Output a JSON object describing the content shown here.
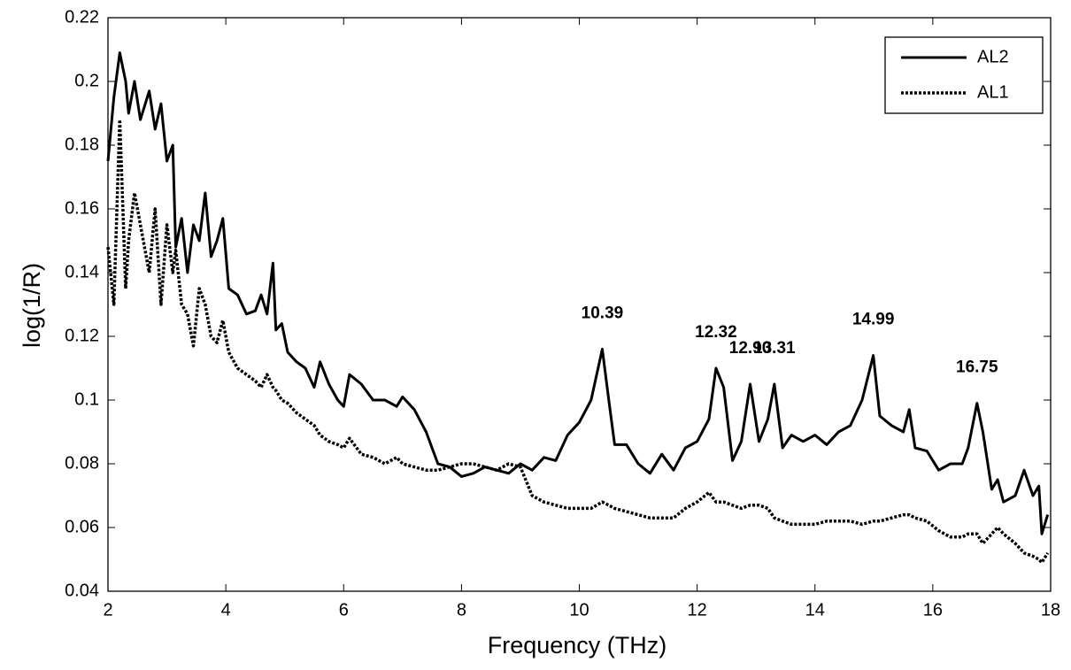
{
  "chart_data": {
    "type": "line",
    "xlabel": "Frequency (THz)",
    "ylabel": "log(1/R)",
    "x": [
      2.0,
      2.1,
      2.2,
      2.3,
      2.35,
      2.45,
      2.55,
      2.7,
      2.8,
      2.9,
      3.0,
      3.1,
      3.15,
      3.25,
      3.35,
      3.45,
      3.55,
      3.65,
      3.75,
      3.85,
      3.95,
      4.05,
      4.2,
      4.35,
      4.5,
      4.6,
      4.7,
      4.8,
      4.85,
      4.95,
      5.05,
      5.2,
      5.35,
      5.5,
      5.6,
      5.75,
      5.9,
      6.0,
      6.1,
      6.3,
      6.5,
      6.7,
      6.9,
      7.0,
      7.2,
      7.4,
      7.6,
      7.8,
      8.0,
      8.2,
      8.4,
      8.6,
      8.8,
      9.0,
      9.2,
      9.4,
      9.6,
      9.8,
      10.0,
      10.2,
      10.39,
      10.5,
      10.6,
      10.8,
      11.0,
      11.2,
      11.4,
      11.6,
      11.8,
      12.0,
      12.2,
      12.32,
      12.45,
      12.6,
      12.75,
      12.9,
      13.05,
      13.2,
      13.31,
      13.45,
      13.6,
      13.8,
      14.0,
      14.2,
      14.4,
      14.6,
      14.8,
      14.99,
      15.1,
      15.3,
      15.5,
      15.6,
      15.7,
      15.9,
      16.1,
      16.3,
      16.5,
      16.6,
      16.75,
      16.85,
      17.0,
      17.1,
      17.2,
      17.4,
      17.55,
      17.7,
      17.8,
      17.85,
      17.95
    ],
    "series": [
      {
        "name": "AL2",
        "color": "#000000",
        "linestyle": "solid",
        "values": [
          0.175,
          0.195,
          0.209,
          0.2,
          0.19,
          0.2,
          0.188,
          0.197,
          0.185,
          0.193,
          0.175,
          0.18,
          0.148,
          0.157,
          0.14,
          0.155,
          0.15,
          0.165,
          0.145,
          0.15,
          0.157,
          0.135,
          0.133,
          0.127,
          0.128,
          0.133,
          0.127,
          0.143,
          0.122,
          0.124,
          0.115,
          0.112,
          0.11,
          0.104,
          0.112,
          0.105,
          0.1,
          0.098,
          0.108,
          0.105,
          0.1,
          0.1,
          0.098,
          0.101,
          0.097,
          0.09,
          0.08,
          0.079,
          0.076,
          0.077,
          0.079,
          0.078,
          0.077,
          0.08,
          0.078,
          0.082,
          0.081,
          0.089,
          0.093,
          0.1,
          0.116,
          0.1,
          0.086,
          0.086,
          0.08,
          0.077,
          0.083,
          0.078,
          0.085,
          0.087,
          0.094,
          0.11,
          0.104,
          0.081,
          0.087,
          0.105,
          0.087,
          0.094,
          0.105,
          0.085,
          0.089,
          0.087,
          0.089,
          0.086,
          0.09,
          0.092,
          0.1,
          0.114,
          0.095,
          0.092,
          0.09,
          0.097,
          0.085,
          0.084,
          0.078,
          0.08,
          0.08,
          0.085,
          0.099,
          0.09,
          0.072,
          0.075,
          0.068,
          0.07,
          0.078,
          0.07,
          0.073,
          0.058,
          0.064
        ]
      },
      {
        "name": "AL1",
        "color": "#000000",
        "linestyle": "dotted",
        "values": [
          0.148,
          0.13,
          0.188,
          0.135,
          0.15,
          0.165,
          0.155,
          0.14,
          0.16,
          0.13,
          0.155,
          0.14,
          0.147,
          0.13,
          0.127,
          0.117,
          0.135,
          0.13,
          0.12,
          0.118,
          0.125,
          0.115,
          0.11,
          0.108,
          0.106,
          0.104,
          0.108,
          0.104,
          0.103,
          0.1,
          0.099,
          0.096,
          0.094,
          0.092,
          0.089,
          0.087,
          0.086,
          0.085,
          0.088,
          0.083,
          0.082,
          0.08,
          0.082,
          0.08,
          0.079,
          0.078,
          0.078,
          0.079,
          0.08,
          0.08,
          0.079,
          0.078,
          0.08,
          0.079,
          0.07,
          0.068,
          0.067,
          0.066,
          0.066,
          0.066,
          0.068,
          0.067,
          0.066,
          0.065,
          0.064,
          0.063,
          0.063,
          0.063,
          0.066,
          0.068,
          0.071,
          0.068,
          0.068,
          0.067,
          0.066,
          0.067,
          0.067,
          0.066,
          0.063,
          0.062,
          0.061,
          0.061,
          0.061,
          0.062,
          0.062,
          0.062,
          0.061,
          0.062,
          0.062,
          0.063,
          0.064,
          0.064,
          0.063,
          0.062,
          0.059,
          0.057,
          0.057,
          0.058,
          0.058,
          0.055,
          0.058,
          0.06,
          0.058,
          0.055,
          0.052,
          0.051,
          0.05,
          0.049,
          0.052
        ]
      }
    ],
    "annotations": [
      {
        "label": "10.39",
        "x": 10.39,
        "y": 0.116
      },
      {
        "label": "12.32",
        "x": 12.32,
        "y": 0.11
      },
      {
        "label": "12.90",
        "x": 12.9,
        "y": 0.105
      },
      {
        "label": "13.31",
        "x": 13.31,
        "y": 0.105
      },
      {
        "label": "14.99",
        "x": 14.99,
        "y": 0.114
      },
      {
        "label": "16.75",
        "x": 16.75,
        "y": 0.099
      }
    ],
    "xlim": [
      2,
      18
    ],
    "xticks": [
      2,
      4,
      6,
      8,
      10,
      12,
      14,
      16,
      18
    ],
    "ylim": [
      0.04,
      0.22
    ],
    "yticks": [
      0.04,
      0.06,
      0.08,
      0.1,
      0.12,
      0.14,
      0.16,
      0.18,
      0.2,
      0.22
    ],
    "grid": false,
    "legend": "upper right"
  }
}
